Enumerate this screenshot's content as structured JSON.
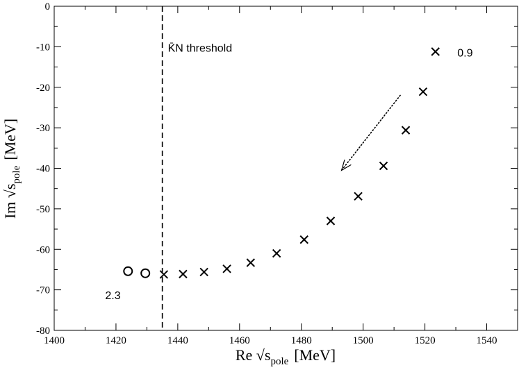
{
  "chart_data": {
    "type": "scatter",
    "title": "",
    "xlabel": "Re √s",
    "xlabel_sub": "pole",
    "xlabel_unit": "[MeV]",
    "ylabel": "Im √s",
    "ylabel_sub": "pole",
    "ylabel_unit": "[MeV]",
    "xlim": [
      1400,
      1550
    ],
    "ylim": [
      -80,
      0
    ],
    "x_ticks": [
      1400,
      1420,
      1440,
      1460,
      1480,
      1500,
      1520,
      1540
    ],
    "y_ticks": [
      0,
      -10,
      -20,
      -30,
      -40,
      -50,
      -60,
      -70,
      -80
    ],
    "x_tick_labels": [
      "1400",
      "1420",
      "1440",
      "1460",
      "1480",
      "1500",
      "1520",
      "1540"
    ],
    "y_tick_labels": [
      "0",
      "-10",
      "-20",
      "-30",
      "-40",
      "-50",
      "-60",
      "-70",
      "-80"
    ],
    "grid": false,
    "series": [
      {
        "name": "crosses",
        "marker": "x",
        "points": [
          [
            1523.4,
            -11.2
          ],
          [
            1519.4,
            -21.1
          ],
          [
            1513.8,
            -30.6
          ],
          [
            1506.6,
            -39.4
          ],
          [
            1498.4,
            -46.9
          ],
          [
            1489.5,
            -53.0
          ],
          [
            1480.9,
            -57.6
          ],
          [
            1472.0,
            -61.0
          ],
          [
            1463.6,
            -63.3
          ],
          [
            1455.9,
            -64.8
          ],
          [
            1448.5,
            -65.6
          ],
          [
            1441.7,
            -66.1
          ],
          [
            1435.5,
            -66.2
          ]
        ]
      },
      {
        "name": "circles",
        "marker": "o",
        "points": [
          [
            1429.5,
            -65.9
          ],
          [
            1423.9,
            -65.4
          ]
        ]
      }
    ],
    "threshold": {
      "x": 1435.0,
      "label": "K̄N threshold"
    },
    "annotations": [
      {
        "text": "0.9",
        "x": 1530.5,
        "y": -11.6
      },
      {
        "text": "2.3",
        "x": 1416.5,
        "y": -71.4
      }
    ],
    "arrow": {
      "from": [
        1512,
        -22
      ],
      "to": [
        1493,
        -40.5
      ]
    }
  }
}
